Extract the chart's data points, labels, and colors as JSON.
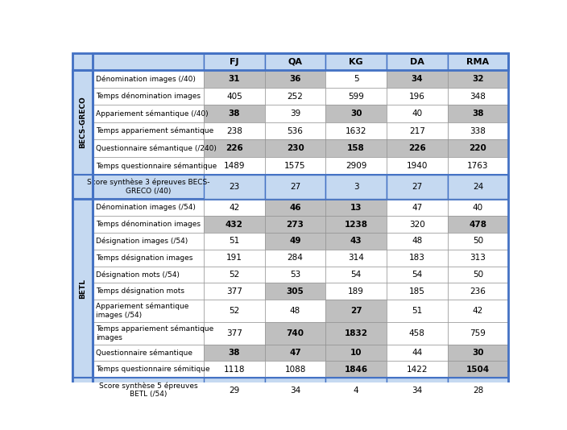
{
  "columns": [
    "FJ",
    "QA",
    "KG",
    "DA",
    "RMA"
  ],
  "light_blue": "#c5d9f1",
  "gray_cell": "#bfbfbf",
  "white_cell": "#ffffff",
  "blue_border": "#4472c4",
  "becs_greco_rows": [
    {
      "label": "Dénomination images (/40)",
      "values": [
        "31",
        "36",
        "5",
        "34",
        "32"
      ],
      "bold": [
        true,
        true,
        false,
        true,
        true
      ],
      "bg": [
        "#bfbfbf",
        "#bfbfbf",
        "#ffffff",
        "#bfbfbf",
        "#bfbfbf"
      ]
    },
    {
      "label": "Temps dénomination images",
      "values": [
        "405",
        "252",
        "599",
        "196",
        "348"
      ],
      "bold": [
        false,
        false,
        false,
        false,
        false
      ],
      "bg": [
        "#ffffff",
        "#ffffff",
        "#ffffff",
        "#ffffff",
        "#ffffff"
      ]
    },
    {
      "label": "Appariement sémantique (/40)",
      "values": [
        "38",
        "39",
        "30",
        "40",
        "38"
      ],
      "bold": [
        true,
        false,
        true,
        false,
        true
      ],
      "bg": [
        "#bfbfbf",
        "#ffffff",
        "#bfbfbf",
        "#ffffff",
        "#bfbfbf"
      ]
    },
    {
      "label": "Temps appariement sémantique",
      "values": [
        "238",
        "536",
        "1632",
        "217",
        "338"
      ],
      "bold": [
        false,
        false,
        false,
        false,
        false
      ],
      "bg": [
        "#ffffff",
        "#ffffff",
        "#ffffff",
        "#ffffff",
        "#ffffff"
      ]
    },
    {
      "label": "Questionnaire sémantique (/240)",
      "values": [
        "226",
        "230",
        "158",
        "226",
        "220"
      ],
      "bold": [
        true,
        true,
        true,
        true,
        true
      ],
      "bg": [
        "#bfbfbf",
        "#bfbfbf",
        "#bfbfbf",
        "#bfbfbf",
        "#bfbfbf"
      ]
    },
    {
      "label": "Temps questionnaire sémantique",
      "values": [
        "1489",
        "1575",
        "2909",
        "1940",
        "1763"
      ],
      "bold": [
        false,
        false,
        false,
        false,
        false
      ],
      "bg": [
        "#ffffff",
        "#ffffff",
        "#ffffff",
        "#ffffff",
        "#ffffff"
      ]
    }
  ],
  "summary1_label": "Score synthèse 3 épreuves BECS-\nGRECO (/40)",
  "summary1_values": [
    "23",
    "27",
    "3",
    "27",
    "24"
  ],
  "betl_rows": [
    {
      "label": "Dénomination images (/54)",
      "values": [
        "42",
        "46",
        "13",
        "47",
        "40"
      ],
      "bold": [
        false,
        true,
        true,
        false,
        false
      ],
      "bg": [
        "#ffffff",
        "#bfbfbf",
        "#bfbfbf",
        "#ffffff",
        "#ffffff"
      ]
    },
    {
      "label": "Temps dénomination images",
      "values": [
        "432",
        "273",
        "1238",
        "320",
        "478"
      ],
      "bold": [
        true,
        true,
        true,
        false,
        true
      ],
      "bg": [
        "#bfbfbf",
        "#bfbfbf",
        "#bfbfbf",
        "#ffffff",
        "#bfbfbf"
      ]
    },
    {
      "label": "Désignation images (/54)",
      "values": [
        "51",
        "49",
        "43",
        "48",
        "50"
      ],
      "bold": [
        false,
        true,
        true,
        false,
        false
      ],
      "bg": [
        "#ffffff",
        "#bfbfbf",
        "#bfbfbf",
        "#ffffff",
        "#ffffff"
      ]
    },
    {
      "label": "Temps désignation images",
      "values": [
        "191",
        "284",
        "314",
        "183",
        "313"
      ],
      "bold": [
        false,
        false,
        false,
        false,
        false
      ],
      "bg": [
        "#ffffff",
        "#ffffff",
        "#ffffff",
        "#ffffff",
        "#ffffff"
      ]
    },
    {
      "label": "Désignation mots (/54)",
      "values": [
        "52",
        "53",
        "54",
        "54",
        "50"
      ],
      "bold": [
        false,
        false,
        false,
        false,
        false
      ],
      "bg": [
        "#ffffff",
        "#ffffff",
        "#ffffff",
        "#ffffff",
        "#ffffff"
      ]
    },
    {
      "label": "Temps désignation mots",
      "values": [
        "377",
        "305",
        "189",
        "185",
        "236"
      ],
      "bold": [
        false,
        true,
        false,
        false,
        false
      ],
      "bg": [
        "#ffffff",
        "#bfbfbf",
        "#ffffff",
        "#ffffff",
        "#ffffff"
      ]
    },
    {
      "label": "Appariement sémantique\nimages (/54)",
      "values": [
        "52",
        "48",
        "27",
        "51",
        "42"
      ],
      "bold": [
        false,
        false,
        true,
        false,
        false
      ],
      "bg": [
        "#ffffff",
        "#ffffff",
        "#bfbfbf",
        "#ffffff",
        "#ffffff"
      ],
      "two_line": true
    },
    {
      "label": "Temps appariement sémantique\nimages",
      "values": [
        "377",
        "740",
        "1832",
        "458",
        "759"
      ],
      "bold": [
        false,
        true,
        true,
        false,
        false
      ],
      "bg": [
        "#ffffff",
        "#bfbfbf",
        "#bfbfbf",
        "#ffffff",
        "#ffffff"
      ],
      "two_line": true
    },
    {
      "label": "Questionnaire sémantique",
      "values": [
        "38",
        "47",
        "10",
        "44",
        "30"
      ],
      "bold": [
        true,
        true,
        true,
        false,
        true
      ],
      "bg": [
        "#bfbfbf",
        "#bfbfbf",
        "#bfbfbf",
        "#ffffff",
        "#bfbfbf"
      ]
    },
    {
      "label": "Temps questionnaire sémitique",
      "values": [
        "1118",
        "1088",
        "1846",
        "1422",
        "1504"
      ],
      "bold": [
        false,
        false,
        true,
        false,
        true
      ],
      "bg": [
        "#ffffff",
        "#ffffff",
        "#bfbfbf",
        "#ffffff",
        "#bfbfbf"
      ]
    }
  ],
  "summary2_label": "Score synthèse 5 épreuves\nBETL (/54)",
  "summary2_values": [
    "29",
    "34",
    "4",
    "34",
    "28"
  ]
}
